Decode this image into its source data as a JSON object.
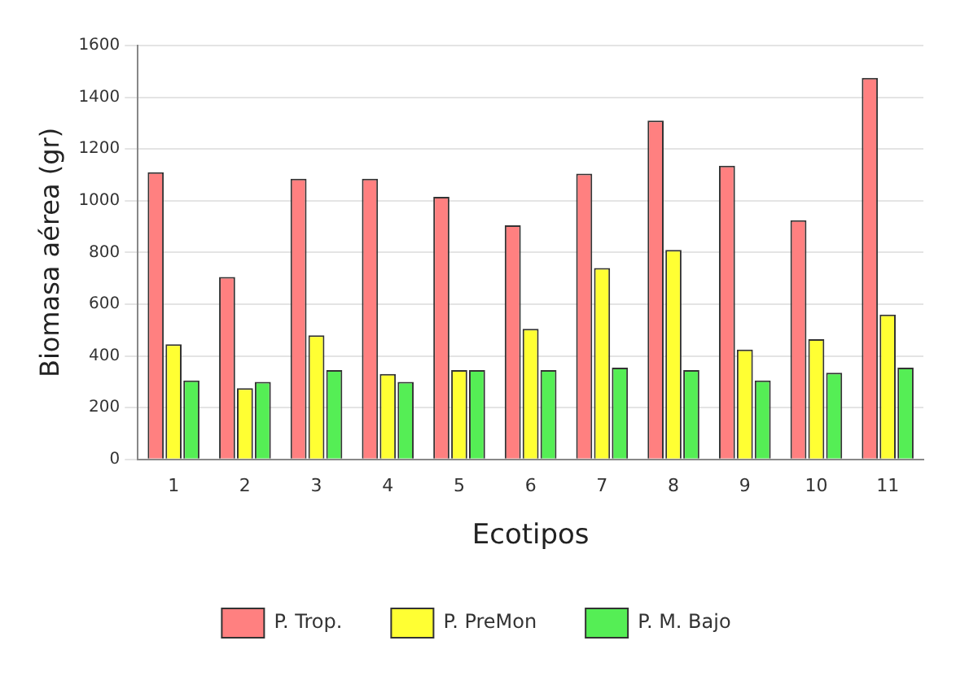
{
  "chart_data": {
    "type": "bar",
    "xlabel": "Ecotipos",
    "ylabel": "Biomasa aérea (gr)",
    "categories": [
      "1",
      "2",
      "3",
      "4",
      "5",
      "6",
      "7",
      "8",
      "9",
      "10",
      "11"
    ],
    "series": [
      {
        "name": "P. Trop.",
        "color": "#ff8080",
        "values": [
          1110,
          705,
          1085,
          1085,
          1015,
          905,
          1105,
          1310,
          1135,
          925,
          1475
        ]
      },
      {
        "name": "P. PreMon",
        "color": "#ffff33",
        "values": [
          445,
          275,
          480,
          330,
          345,
          505,
          740,
          810,
          425,
          465,
          560
        ]
      },
      {
        "name": "P. M. Bajo",
        "color": "#55ee55",
        "values": [
          305,
          300,
          345,
          300,
          345,
          345,
          355,
          345,
          305,
          335,
          355
        ]
      }
    ],
    "ylim": [
      0,
      1600
    ],
    "yticks": [
      0,
      200,
      400,
      600,
      800,
      1000,
      1200,
      1400,
      1600
    ],
    "grid": "y",
    "legend": "bottom"
  }
}
